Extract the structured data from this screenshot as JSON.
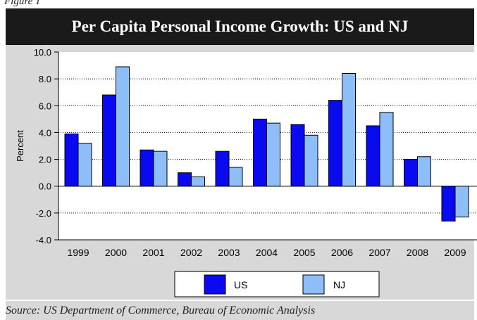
{
  "figure_label": "Figure 1",
  "source": "Source: US Department of Commerce, Bureau of Economic Analysis",
  "chart_data": {
    "type": "bar",
    "title": "Per Capita Personal Income Growth: US and NJ",
    "ylabel": "Percent",
    "xlabel": "",
    "categories": [
      "1999",
      "2000",
      "2001",
      "2002",
      "2003",
      "2004",
      "2005",
      "2006",
      "2007",
      "2008",
      "2009"
    ],
    "series": [
      {
        "name": "US",
        "color": "#0a0af0",
        "values": [
          3.9,
          6.8,
          2.7,
          1.0,
          2.6,
          5.0,
          4.6,
          6.4,
          4.5,
          2.0,
          -2.6
        ]
      },
      {
        "name": "NJ",
        "color": "#8ebef8",
        "values": [
          3.2,
          8.9,
          2.6,
          0.7,
          1.4,
          4.7,
          3.8,
          8.4,
          5.5,
          2.2,
          -2.3
        ]
      }
    ],
    "ylim": [
      -4.0,
      10.0
    ],
    "yticks": [
      "-4.0",
      "-2.0",
      "0.0",
      "2.0",
      "4.0",
      "6.0",
      "8.0",
      "10.0"
    ],
    "grid": true,
    "legend_position": "bottom"
  }
}
